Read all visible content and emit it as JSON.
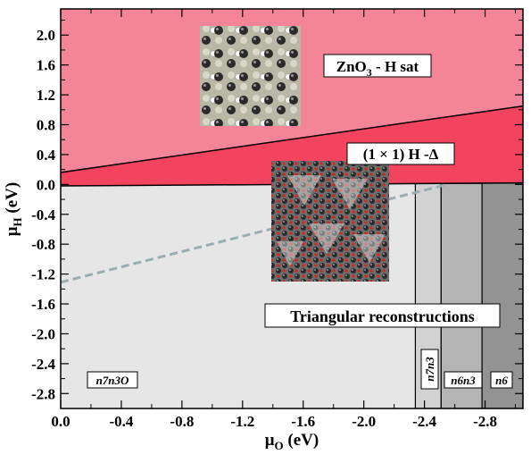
{
  "chart_data": {
    "type": "area",
    "title": "",
    "xlabel": "μ",
    "xlabel_sub": "O",
    "xlabel_unit": " (eV)",
    "ylabel": "μ",
    "ylabel_sub": "H",
    "ylabel_unit": " (eV)",
    "xlim": [
      0.0,
      -3.05
    ],
    "ylim": [
      -3.0,
      2.35
    ],
    "x_ticks": [
      0.0,
      -0.4,
      -0.8,
      -1.2,
      -1.6,
      -2.0,
      -2.4,
      -2.8
    ],
    "x_tick_labels": [
      "0.0",
      "-0.4",
      "-0.8",
      "-1.2",
      "-1.6",
      "-2.0",
      "-2.4",
      "-2.8"
    ],
    "y_ticks": [
      2.0,
      1.6,
      1.2,
      0.8,
      0.4,
      0.0,
      -0.4,
      -0.8,
      -1.2,
      -1.6,
      -2.0,
      -2.4,
      -2.8
    ],
    "y_tick_labels": [
      "2.0",
      "1.6",
      "1.2",
      "0.8",
      "0.4",
      "0.0",
      "-0.4",
      "-0.8",
      "-1.2",
      "-1.6",
      "-2.0",
      "-2.4",
      "-2.8"
    ],
    "regions": {
      "zno3_h_sat": {
        "label_main": "ZnO",
        "label_sub": "3",
        "label_rest": " - H sat",
        "color": "#f48497"
      },
      "h_delta": {
        "label": "(1 × 1) H -Δ",
        "color": "#f3445f"
      },
      "triangular": {
        "label": "Triangular reconstructions"
      },
      "n7n3O": {
        "label": "n7n3O",
        "x_range": [
          0.0,
          -2.34
        ],
        "color": "#e6e6e6"
      },
      "n7n3": {
        "label": "n7n3",
        "x_range": [
          -2.34,
          -2.51
        ],
        "color": "#d2d2d2"
      },
      "n6n3": {
        "label": "n6n3",
        "x_range": [
          -2.51,
          -2.78
        ],
        "color": "#b4b4b4"
      },
      "n6": {
        "label": "n6",
        "x_range": [
          -2.78,
          -3.05
        ],
        "color": "#939393"
      }
    },
    "boundary_lines": [
      {
        "name": "ZnO3-H sat / (1x1) H-Δ",
        "points": [
          [
            0.55,
            0.0
          ],
          [
            -3.05,
            1.05
          ]
        ],
        "style": "solid",
        "color": "#000000"
      },
      {
        "name": "H-Δ / triangular",
        "points": [
          [
            0.0,
            -0.02
          ],
          [
            -3.05,
            0.02
          ]
        ],
        "style": "solid",
        "color": "#000000"
      },
      {
        "name": "dashed boundary",
        "points": [
          [
            0.0,
            -1.31
          ],
          [
            -2.55,
            0.0
          ]
        ],
        "style": "dashed",
        "color": "#9aaeb1"
      }
    ],
    "grid": false,
    "legend": "none"
  }
}
